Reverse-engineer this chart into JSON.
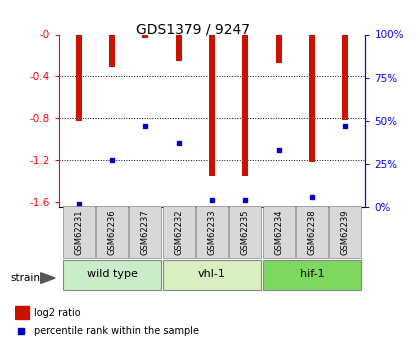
{
  "title": "GDS1379 / 9247",
  "samples": [
    "GSM62231",
    "GSM62236",
    "GSM62237",
    "GSM62232",
    "GSM62233",
    "GSM62235",
    "GSM62234",
    "GSM62238",
    "GSM62239"
  ],
  "log2_values": [
    -0.83,
    -0.31,
    -0.03,
    -0.25,
    -1.35,
    -1.35,
    -0.27,
    -1.22,
    -0.82
  ],
  "percentile_values": [
    2,
    27,
    47,
    37,
    4,
    4,
    33,
    6,
    47
  ],
  "groups": [
    {
      "label": "wild type",
      "indices": [
        0,
        1,
        2
      ],
      "color": "#c8edc8"
    },
    {
      "label": "vhl-1",
      "indices": [
        3,
        4,
        5
      ],
      "color": "#d8efc0"
    },
    {
      "label": "hif-1",
      "indices": [
        6,
        7,
        8
      ],
      "color": "#7dd860"
    }
  ],
  "ylim_left": [
    -1.65,
    0.0
  ],
  "ylim_right": [
    0,
    100
  ],
  "yticks_left": [
    -1.6,
    -1.2,
    -0.8,
    -0.4,
    0.0
  ],
  "yticks_right": [
    0,
    25,
    50,
    75,
    100
  ],
  "bar_color": "#cc1100",
  "percentile_color": "#0000cc",
  "bar_width": 0.18,
  "legend_log2": "log2 ratio",
  "legend_pct": "percentile rank within the sample",
  "strain_label": "strain"
}
